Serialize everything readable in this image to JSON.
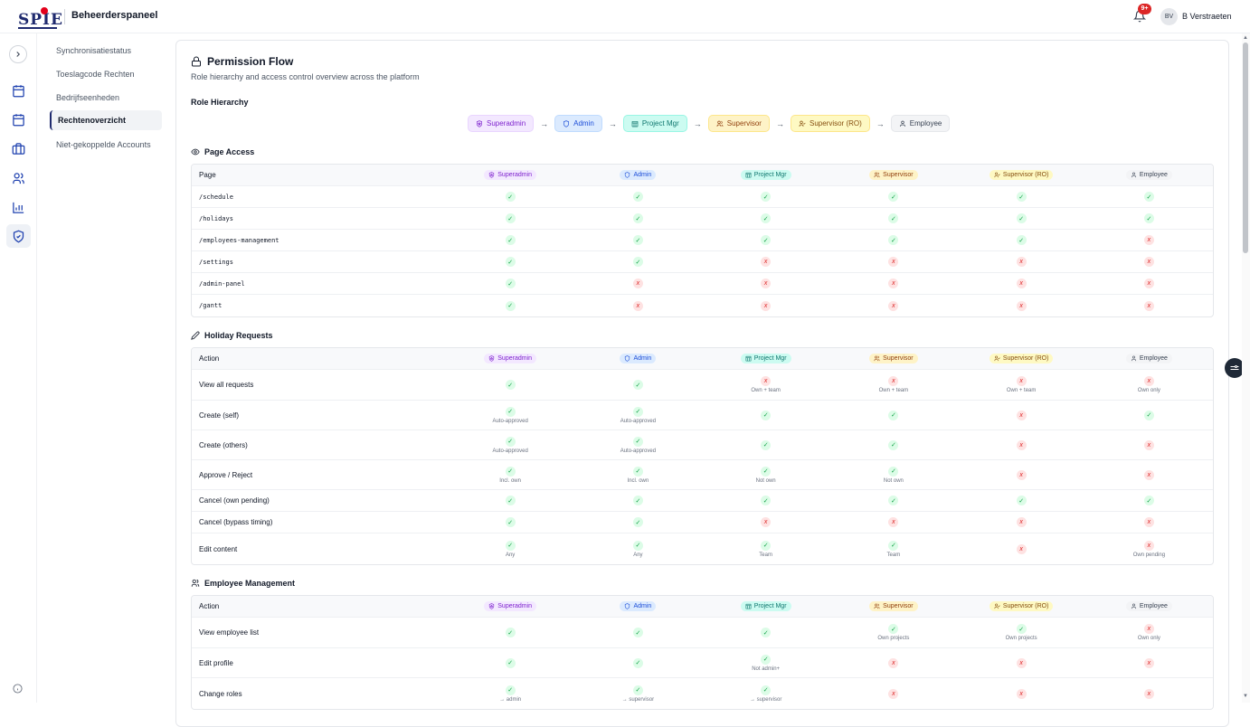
{
  "header": {
    "logo_text": "SPIE",
    "app_title": "Beheerderspaneel",
    "notification_count": "9+",
    "user_initials": "BV",
    "user_name": "B Verstraeten"
  },
  "subnav": [
    {
      "label": "Synchronisatiestatus",
      "active": false
    },
    {
      "label": "Toeslagcode Rechten",
      "active": false
    },
    {
      "label": "Bedrijfseenheden",
      "active": false
    },
    {
      "label": "Rechtenoverzicht",
      "active": true
    },
    {
      "label": "Niet-gekoppelde Accounts",
      "active": false
    }
  ],
  "page": {
    "title": "Permission Flow",
    "subtitle": "Role hierarchy and access control overview across the platform"
  },
  "roles": [
    {
      "key": "superadmin",
      "label": "Superadmin",
      "icon": "shield-star-icon",
      "bg": "#f3e8ff",
      "fg": "#7e22ce",
      "border": "#e9d5ff"
    },
    {
      "key": "admin",
      "label": "Admin",
      "icon": "shield-icon",
      "bg": "#dbeafe",
      "fg": "#1d4ed8",
      "border": "#bfdbfe"
    },
    {
      "key": "projectmgr",
      "label": "Project Mgr",
      "icon": "building-icon",
      "bg": "#ccfbf1",
      "fg": "#0f766e",
      "border": "#99f6e4"
    },
    {
      "key": "supervisor",
      "label": "Supervisor",
      "icon": "users-icon",
      "bg": "#fef3c7",
      "fg": "#92400e",
      "border": "#fde68a"
    },
    {
      "key": "supervisor_ro",
      "label": "Supervisor (RO)",
      "icon": "user-check-icon",
      "bg": "#fef9c3",
      "fg": "#854d0e",
      "border": "#fde68a"
    },
    {
      "key": "employee",
      "label": "Employee",
      "icon": "user-icon",
      "bg": "#f3f4f6",
      "fg": "#374151",
      "border": "#e5e7eb"
    }
  ],
  "sections": {
    "hierarchy_label": "Role Hierarchy",
    "page_access": {
      "label": "Page Access",
      "first_col": "Page",
      "rows": [
        {
          "name": "/schedule",
          "cells": [
            [
              "y",
              ""
            ],
            [
              "y",
              ""
            ],
            [
              "y",
              ""
            ],
            [
              "y",
              ""
            ],
            [
              "y",
              ""
            ],
            [
              "y",
              ""
            ]
          ]
        },
        {
          "name": "/holidays",
          "cells": [
            [
              "y",
              ""
            ],
            [
              "y",
              ""
            ],
            [
              "y",
              ""
            ],
            [
              "y",
              ""
            ],
            [
              "y",
              ""
            ],
            [
              "y",
              ""
            ]
          ]
        },
        {
          "name": "/employees-management",
          "cells": [
            [
              "y",
              ""
            ],
            [
              "y",
              ""
            ],
            [
              "y",
              ""
            ],
            [
              "y",
              ""
            ],
            [
              "y",
              ""
            ],
            [
              "n",
              ""
            ]
          ]
        },
        {
          "name": "/settings",
          "cells": [
            [
              "y",
              ""
            ],
            [
              "y",
              ""
            ],
            [
              "n",
              ""
            ],
            [
              "n",
              ""
            ],
            [
              "n",
              ""
            ],
            [
              "n",
              ""
            ]
          ]
        },
        {
          "name": "/admin-panel",
          "cells": [
            [
              "y",
              ""
            ],
            [
              "n",
              ""
            ],
            [
              "n",
              ""
            ],
            [
              "n",
              ""
            ],
            [
              "n",
              ""
            ],
            [
              "n",
              ""
            ]
          ]
        },
        {
          "name": "/gantt",
          "cells": [
            [
              "y",
              ""
            ],
            [
              "n",
              ""
            ],
            [
              "n",
              ""
            ],
            [
              "n",
              ""
            ],
            [
              "n",
              ""
            ],
            [
              "n",
              ""
            ]
          ]
        }
      ]
    },
    "holiday": {
      "label": "Holiday Requests",
      "first_col": "Action",
      "rows": [
        {
          "name": "View all requests",
          "cells": [
            [
              "y",
              ""
            ],
            [
              "y",
              ""
            ],
            [
              "n",
              "Own + team"
            ],
            [
              "n",
              "Own + team"
            ],
            [
              "n",
              "Own + team"
            ],
            [
              "n",
              "Own only"
            ]
          ]
        },
        {
          "name": "Create (self)",
          "cells": [
            [
              "y",
              "Auto-approved"
            ],
            [
              "y",
              "Auto-approved"
            ],
            [
              "y",
              ""
            ],
            [
              "y",
              ""
            ],
            [
              "n",
              ""
            ],
            [
              "y",
              ""
            ]
          ]
        },
        {
          "name": "Create (others)",
          "cells": [
            [
              "y",
              "Auto-approved"
            ],
            [
              "y",
              "Auto-approved"
            ],
            [
              "y",
              ""
            ],
            [
              "y",
              ""
            ],
            [
              "n",
              ""
            ],
            [
              "n",
              ""
            ]
          ]
        },
        {
          "name": "Approve / Reject",
          "cells": [
            [
              "y",
              "Incl. own"
            ],
            [
              "y",
              "Incl. own"
            ],
            [
              "y",
              "Not own"
            ],
            [
              "y",
              "Not own"
            ],
            [
              "n",
              ""
            ],
            [
              "n",
              ""
            ]
          ]
        },
        {
          "name": "Cancel (own pending)",
          "cells": [
            [
              "y",
              ""
            ],
            [
              "y",
              ""
            ],
            [
              "y",
              ""
            ],
            [
              "y",
              ""
            ],
            [
              "y",
              ""
            ],
            [
              "y",
              ""
            ]
          ]
        },
        {
          "name": "Cancel (bypass timing)",
          "cells": [
            [
              "y",
              ""
            ],
            [
              "y",
              ""
            ],
            [
              "n",
              ""
            ],
            [
              "n",
              ""
            ],
            [
              "n",
              ""
            ],
            [
              "n",
              ""
            ]
          ]
        },
        {
          "name": "Edit content",
          "cells": [
            [
              "y",
              "Any"
            ],
            [
              "y",
              "Any"
            ],
            [
              "y",
              "Team"
            ],
            [
              "y",
              "Team"
            ],
            [
              "n",
              ""
            ],
            [
              "n",
              "Own pending"
            ]
          ]
        }
      ]
    },
    "employee": {
      "label": "Employee Management",
      "first_col": "Action",
      "rows": [
        {
          "name": "View employee list",
          "cells": [
            [
              "y",
              ""
            ],
            [
              "y",
              ""
            ],
            [
              "y",
              ""
            ],
            [
              "y",
              "Own projects"
            ],
            [
              "y",
              "Own projects"
            ],
            [
              "n",
              "Own only"
            ]
          ]
        },
        {
          "name": "Edit profile",
          "cells": [
            [
              "y",
              ""
            ],
            [
              "y",
              ""
            ],
            [
              "y",
              "Not admin+"
            ],
            [
              "n",
              ""
            ],
            [
              "n",
              ""
            ],
            [
              "n",
              ""
            ]
          ]
        },
        {
          "name": "Change roles",
          "cells": [
            [
              "y",
              "→ admin"
            ],
            [
              "y",
              "→ supervisor"
            ],
            [
              "y",
              "→ supervisor"
            ],
            [
              "n",
              ""
            ],
            [
              "n",
              ""
            ],
            [
              "n",
              ""
            ]
          ]
        }
      ]
    }
  },
  "marks": {
    "yes": "✓",
    "no": "x"
  }
}
